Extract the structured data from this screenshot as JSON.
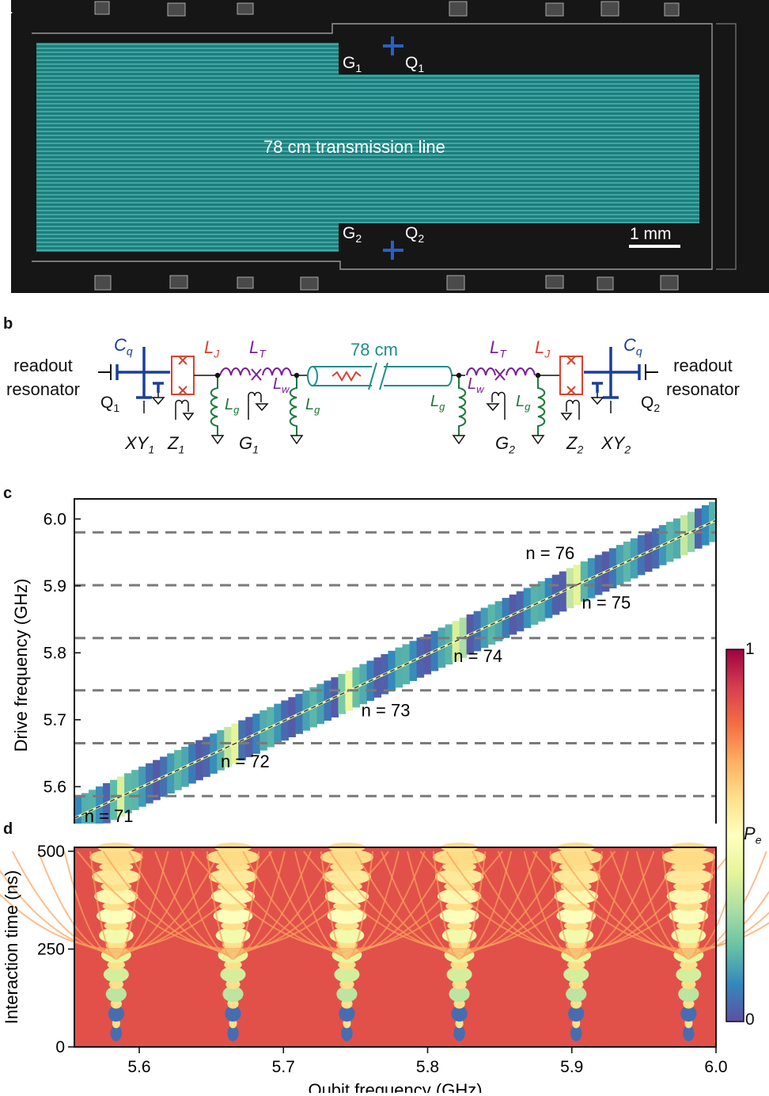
{
  "panels": {
    "a": {
      "letter": "a",
      "center_label": "78 cm transmission line",
      "G1": "G",
      "G1_sub": "1",
      "Q1": "Q",
      "Q1_sub": "1",
      "G2": "G",
      "G2_sub": "2",
      "Q2": "Q",
      "Q2_sub": "2",
      "scale_bar": "1 mm"
    },
    "b": {
      "letter": "b",
      "readout_left": [
        "readout",
        "resonator"
      ],
      "readout_right": [
        "readout",
        "resonator"
      ],
      "line_length": "78 cm",
      "Cq": "C",
      "Cq_sub": "q",
      "LJ": "L",
      "LJ_sub": "J",
      "LT": "L",
      "LT_sub": "T",
      "Lw": "L",
      "Lw_sub": "w",
      "Lg": "L",
      "Lg_sub": "g",
      "Q1": "Q",
      "Q1_sub": "1",
      "Q2": "Q",
      "Q2_sub": "2",
      "XY1": "XY",
      "XY1_sub": "1",
      "Z1": "Z",
      "Z1_sub": "1",
      "G1": "G",
      "G1_sub": "1",
      "G2": "G",
      "G2_sub": "2",
      "Z2": "Z",
      "Z2_sub": "2",
      "XY2": "XY",
      "XY2_sub": "2"
    },
    "c": {
      "letter": "c"
    },
    "d": {
      "letter": "d"
    }
  },
  "colorbar": {
    "label": "P",
    "label_sub": "e",
    "ticks": [
      "1",
      "0"
    ],
    "colors": [
      "#9e0142",
      "#d53e4f",
      "#f46d43",
      "#fdae61",
      "#fee08b",
      "#ffffbf",
      "#e6f598",
      "#abdda4",
      "#66c2a5",
      "#3288bd",
      "#5e4fa2"
    ]
  },
  "chart_data": [
    {
      "type": "heatmap",
      "panel": "c",
      "title": "",
      "xlabel": "",
      "ylabel": "Drive frequency (GHz)",
      "xlim": [
        5.555,
        6.0
      ],
      "ylim": [
        5.533,
        6.03
      ],
      "xticks": [
        5.6,
        5.7,
        5.8,
        5.9,
        6.0
      ],
      "yticks": [
        5.6,
        5.7,
        5.8,
        5.9,
        6.0
      ],
      "ytick_labels": [
        "5.6",
        "5.7",
        "5.8",
        "5.9",
        "6.0"
      ],
      "mode_frequencies": [
        5.586,
        5.665,
        5.744,
        5.822,
        5.901,
        5.98
      ],
      "mode_labels": [
        {
          "text": "n = 71",
          "x": 5.562,
          "y": 5.547
        },
        {
          "text": "n = 72",
          "x": 5.6565,
          "y": 5.629
        },
        {
          "text": "n = 73",
          "x": 5.754,
          "y": 5.705
        },
        {
          "text": "n = 74",
          "x": 5.818,
          "y": 5.786
        },
        {
          "text": "n = 75",
          "x": 5.907,
          "y": 5.866
        },
        {
          "text": "n = 76",
          "x": 5.868,
          "y": 5.94
        }
      ],
      "colorbar_range": [
        0,
        1
      ]
    },
    {
      "type": "heatmap",
      "panel": "d",
      "title": "",
      "xlabel": "Qubit frequency (GHz)",
      "ylabel": "Interaction time (ns)",
      "xlim": [
        5.555,
        6.0
      ],
      "ylim": [
        0,
        510
      ],
      "xticks": [
        5.6,
        5.7,
        5.8,
        5.9,
        6.0
      ],
      "xtick_labels": [
        "5.6",
        "5.7",
        "5.8",
        "5.9",
        "6.0"
      ],
      "yticks": [
        0,
        250,
        500
      ],
      "ytick_labels": [
        "0",
        "250",
        "500"
      ],
      "resonance_frequencies": [
        5.584,
        5.665,
        5.744,
        5.822,
        5.903,
        5.981
      ],
      "colorbar_range": [
        0,
        1
      ]
    }
  ]
}
